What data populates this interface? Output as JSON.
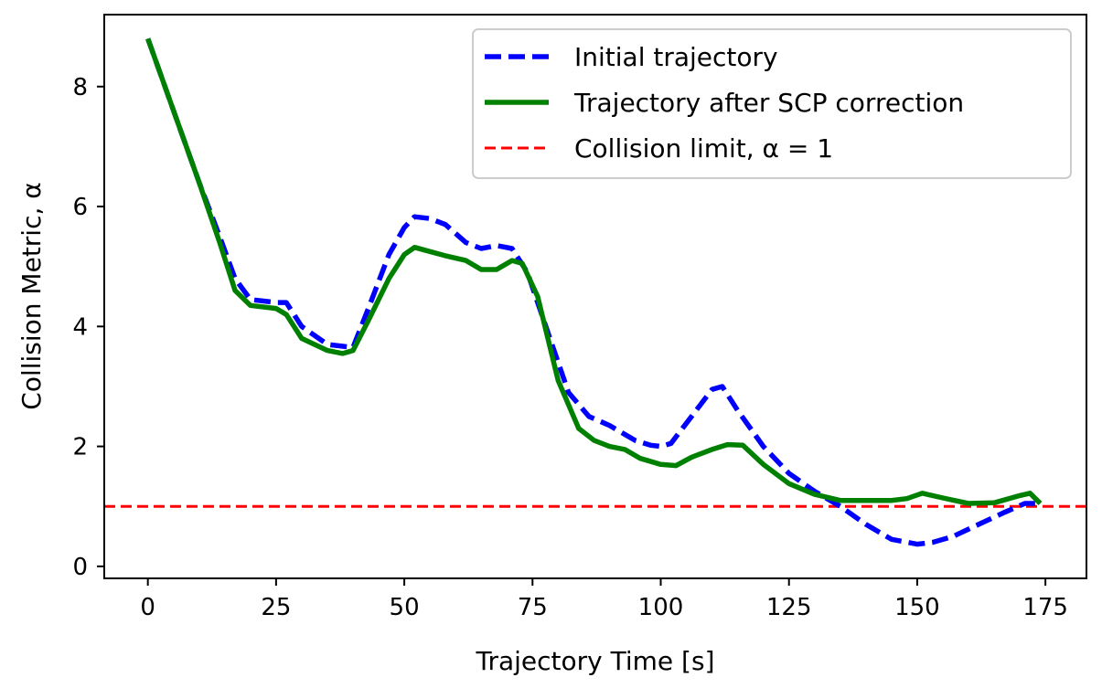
{
  "chart_data": {
    "type": "line",
    "title": "",
    "xlabel": "Trajectory Time [s]",
    "ylabel": "Collision Metric, α",
    "xlim": [
      -8.5,
      183
    ],
    "ylim": [
      -0.2,
      9.2
    ],
    "xticks": [
      0,
      25,
      50,
      75,
      100,
      125,
      150,
      175
    ],
    "xtick_labels": [
      "0",
      "25",
      "50",
      "75",
      "100",
      "125",
      "150",
      "175"
    ],
    "yticks": [
      0,
      2,
      4,
      6,
      8
    ],
    "ytick_labels": [
      "0",
      "2",
      "4",
      "6",
      "8"
    ],
    "grid": false,
    "legend_position": "top-right",
    "series": [
      {
        "name": "Initial trajectory",
        "color": "#0000ff",
        "style": "dashed",
        "x": [
          0,
          5,
          10,
          14,
          17,
          20,
          25,
          27,
          30,
          35,
          40,
          43,
          47,
          50,
          52,
          55,
          58,
          62,
          65,
          68,
          71,
          74,
          78,
          82,
          86,
          90,
          95,
          98,
          100,
          102,
          106,
          110,
          112,
          115,
          120,
          125,
          130,
          135,
          140,
          145,
          150,
          153,
          157,
          162,
          167,
          171,
          173
        ],
        "y": [
          8.8,
          7.6,
          6.4,
          5.5,
          4.8,
          4.45,
          4.4,
          4.4,
          4.0,
          3.7,
          3.65,
          4.3,
          5.2,
          5.65,
          5.83,
          5.8,
          5.7,
          5.4,
          5.3,
          5.35,
          5.3,
          4.9,
          3.9,
          2.9,
          2.5,
          2.35,
          2.1,
          2.02,
          2.0,
          2.05,
          2.5,
          2.95,
          3.0,
          2.6,
          2.0,
          1.55,
          1.25,
          1.0,
          0.7,
          0.45,
          0.37,
          0.4,
          0.5,
          0.7,
          0.9,
          1.05,
          1.05
        ]
      },
      {
        "name": "Trajectory after SCP correction",
        "color": "#008000",
        "style": "solid",
        "x": [
          0,
          5,
          10,
          14,
          17,
          20,
          25,
          27,
          30,
          35,
          38,
          40,
          43,
          47,
          50,
          52,
          55,
          58,
          62,
          65,
          68,
          71,
          73,
          76,
          80,
          84,
          87,
          90,
          93,
          96,
          100,
          103,
          106,
          110,
          113,
          116,
          120,
          125,
          130,
          135,
          140,
          145,
          148,
          151,
          155,
          160,
          165,
          170,
          172,
          174
        ],
        "y": [
          8.8,
          7.6,
          6.4,
          5.4,
          4.6,
          4.35,
          4.3,
          4.2,
          3.8,
          3.6,
          3.55,
          3.6,
          4.1,
          4.8,
          5.2,
          5.32,
          5.25,
          5.18,
          5.1,
          4.95,
          4.95,
          5.1,
          5.05,
          4.5,
          3.1,
          2.3,
          2.1,
          2.0,
          1.95,
          1.8,
          1.7,
          1.68,
          1.82,
          1.95,
          2.03,
          2.02,
          1.7,
          1.38,
          1.2,
          1.1,
          1.1,
          1.1,
          1.13,
          1.22,
          1.14,
          1.05,
          1.06,
          1.18,
          1.22,
          1.05
        ]
      },
      {
        "name": "Collision limit, α = 1",
        "color": "#ff0000",
        "style": "dashed",
        "x": [
          -8.5,
          183
        ],
        "y": [
          1,
          1
        ]
      }
    ]
  }
}
